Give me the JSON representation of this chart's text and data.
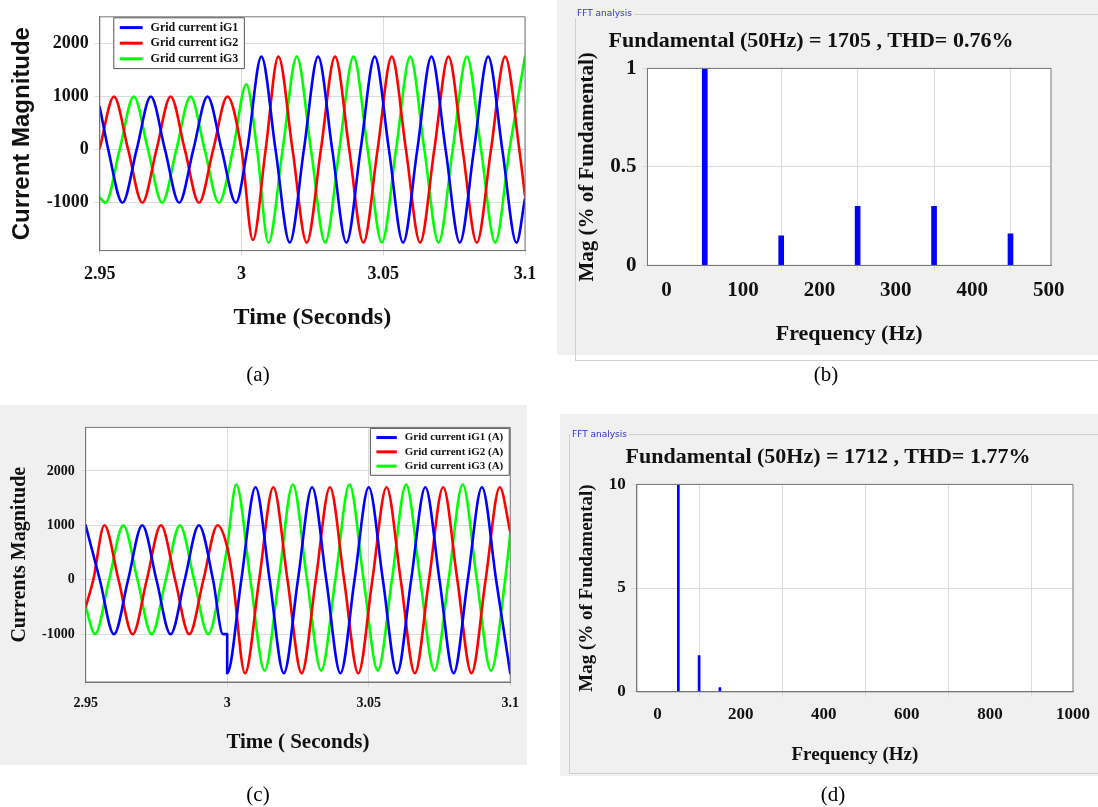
{
  "chart_data": [
    {
      "type": "line",
      "xlabel": "Time (Seconds)",
      "ylabel": "Current Magnitude",
      "xlim": [
        2.95,
        3.1
      ],
      "xticks": [
        2.95,
        3,
        3.05,
        3.1
      ],
      "ylim": [
        -1900,
        2500
      ],
      "yticks": [
        -1000,
        0,
        1000,
        2000
      ],
      "grid": true,
      "legend": "top left",
      "annotations": [
        "(a)"
      ],
      "series": [
        {
          "name": "Grid current iG1",
          "color": "#0000ff",
          "x": [
            2.95,
            2.953,
            2.958,
            2.963,
            2.968,
            2.973,
            2.978,
            2.983,
            2.988,
            2.993,
            2.998,
            3.002,
            3.007,
            3.012,
            3.017,
            3.022,
            3.027,
            3.032,
            3.037,
            3.042,
            3.047,
            3.052,
            3.057,
            3.062,
            3.067,
            3.072,
            3.077,
            3.082,
            3.087,
            3.092,
            3.097,
            3.1
          ],
          "values": [
            800,
            0,
            -1000,
            0,
            1000,
            0,
            -1000,
            0,
            1000,
            0,
            -1000,
            0,
            1750,
            0,
            -1750,
            0,
            1750,
            0,
            -1750,
            0,
            1750,
            0,
            -1750,
            0,
            1750,
            0,
            -1750,
            0,
            1750,
            0,
            -1750,
            -920
          ]
        },
        {
          "name": "Grid current iG2",
          "color": "#ff0000",
          "x": [
            2.95,
            2.955,
            2.96,
            2.965,
            2.97,
            2.975,
            2.98,
            2.985,
            2.99,
            2.995,
            3.0,
            3.004,
            3.0085,
            3.013,
            3.018,
            3.023,
            3.028,
            3.033,
            3.038,
            3.043,
            3.048,
            3.053,
            3.058,
            3.063,
            3.068,
            3.073,
            3.078,
            3.083,
            3.088,
            3.093,
            3.098,
            3.1
          ],
          "values": [
            30,
            1000,
            0,
            -1000,
            0,
            1000,
            0,
            -1000,
            0,
            1000,
            0,
            -1700,
            0,
            1750,
            0,
            -1750,
            0,
            1750,
            0,
            -1750,
            0,
            1750,
            0,
            -1750,
            0,
            1750,
            0,
            -1750,
            0,
            1750,
            0,
            -870
          ]
        },
        {
          "name": "Grid current iG3",
          "color": "#00ff00",
          "x": [
            2.95,
            2.952,
            2.957,
            2.962,
            2.967,
            2.972,
            2.977,
            2.982,
            2.987,
            2.992,
            2.997,
            3.0017,
            3.0055,
            3.0095,
            3.0145,
            3.0195,
            3.0245,
            3.0295,
            3.0345,
            3.0395,
            3.0445,
            3.0495,
            3.0545,
            3.0595,
            3.0645,
            3.0695,
            3.0745,
            3.0795,
            3.0845,
            3.0895,
            3.0945,
            3.1
          ],
          "values": [
            -900,
            -1000,
            0,
            1000,
            0,
            -1000,
            0,
            1000,
            0,
            -1000,
            0,
            1230,
            0,
            -1750,
            0,
            1750,
            0,
            -1750,
            0,
            1750,
            0,
            -1750,
            0,
            1750,
            0,
            -1750,
            0,
            1750,
            0,
            -1750,
            0,
            1750
          ]
        }
      ]
    },
    {
      "type": "bar",
      "title": "Fundamental (50Hz) = 1705 , THD= 0.76%",
      "xlabel": "Frequency (Hz)",
      "ylabel": "Mag (% of Fundamental)",
      "x": [
        50,
        150,
        250,
        350,
        450
      ],
      "values": [
        1,
        0.15,
        0.3,
        0.3,
        0.16
      ],
      "color": "#0000ff",
      "xlim": [
        -25,
        503
      ],
      "xticks": [
        0,
        100,
        200,
        300,
        400,
        500
      ],
      "ylim": [
        0,
        1
      ],
      "yticks": [
        0,
        0.5,
        1
      ],
      "grid": true,
      "annotations": [
        "FFT analysis",
        "(b)"
      ]
    },
    {
      "type": "line",
      "xlabel": "Time ( Seconds)",
      "ylabel": "Currents Magnitude",
      "xlim": [
        2.95,
        3.1
      ],
      "xticks": [
        2.95,
        3,
        3.05,
        3.1
      ],
      "ylim": [
        -1880,
        2800
      ],
      "yticks": [
        -1000,
        0,
        1000,
        2000
      ],
      "grid": true,
      "legend": "top right",
      "annotations": [
        "(c)"
      ],
      "series": [
        {
          "name": "Grid current iG1 (A)",
          "color": "#0000ff",
          "x": [
            2.95,
            2.955,
            2.96,
            2.965,
            2.97,
            2.975,
            2.98,
            2.985,
            2.99,
            2.995,
            2.9985,
            3.0,
            3.0,
            3.005,
            3.01,
            3.015,
            3.02,
            3.025,
            3.03,
            3.035,
            3.04,
            3.045,
            3.05,
            3.055,
            3.06,
            3.065,
            3.07,
            3.075,
            3.08,
            3.085,
            3.09,
            3.095,
            3.1
          ],
          "values": [
            1000,
            0,
            -1000,
            0,
            1000,
            0,
            -1000,
            0,
            1000,
            0,
            -1000,
            -1000,
            -1720,
            0,
            1700,
            0,
            -1720,
            0,
            1700,
            0,
            -1720,
            0,
            1700,
            0,
            -1720,
            0,
            1700,
            0,
            -1720,
            0,
            1700,
            0,
            -1720
          ]
        },
        {
          "name": "Grid current iG2 (A)",
          "color": "#ff0000",
          "x": [
            2.95,
            2.9527,
            2.9566,
            2.9616,
            2.9666,
            2.9716,
            2.9766,
            2.9816,
            2.9866,
            2.9916,
            2.9966,
            3.0,
            3.002,
            3.0063,
            3.0113,
            3.0163,
            3.0213,
            3.0263,
            3.0313,
            3.0363,
            3.0413,
            3.0463,
            3.0513,
            3.0563,
            3.0613,
            3.0663,
            3.0713,
            3.0763,
            3.0813,
            3.0863,
            3.0913,
            3.0963,
            3.1
          ],
          "values": [
            -500,
            0,
            1000,
            0,
            -1000,
            0,
            1000,
            0,
            -1000,
            0,
            1000,
            600,
            0,
            -1720,
            0,
            1700,
            0,
            -1720,
            0,
            1700,
            0,
            -1720,
            0,
            1700,
            0,
            -1720,
            0,
            1700,
            0,
            -1720,
            0,
            1700,
            880
          ]
        },
        {
          "name": "Grid current iG3 (A)",
          "color": "#00ff00",
          "x": [
            2.95,
            2.9533,
            2.9583,
            2.9633,
            2.9683,
            2.9733,
            2.9783,
            2.9833,
            2.9883,
            2.9933,
            2.998,
            3.0,
            3.0032,
            3.0082,
            3.0132,
            3.0182,
            3.0232,
            3.0282,
            3.0332,
            3.0382,
            3.0432,
            3.0482,
            3.0532,
            3.0582,
            3.0632,
            3.0682,
            3.0732,
            3.0782,
            3.0832,
            3.0882,
            3.0932,
            3.0982,
            3.1
          ],
          "values": [
            -500,
            -1000,
            0,
            1000,
            0,
            -1000,
            0,
            1000,
            0,
            -1000,
            0,
            600,
            1750,
            0,
            -1670,
            0,
            1750,
            0,
            -1670,
            0,
            1750,
            0,
            -1670,
            0,
            1750,
            0,
            -1670,
            0,
            1750,
            0,
            -1670,
            0,
            850
          ]
        }
      ]
    },
    {
      "type": "bar",
      "title": "Fundamental (50Hz) = 1712 , THD= 1.77%",
      "xlabel": "Frequency (Hz)",
      "ylabel": "Mag (% of Fundamental)",
      "x": [
        50,
        100,
        150
      ],
      "values": [
        10,
        1.75,
        0.2
      ],
      "color": "#0000ff",
      "xlim": [
        -50,
        1000
      ],
      "xticks": [
        0,
        200,
        400,
        600,
        800,
        1000
      ],
      "ylim": [
        0,
        10
      ],
      "yticks": [
        0,
        5,
        10
      ],
      "grid": true,
      "annotations": [
        "FFT analysis",
        "(d)"
      ]
    }
  ]
}
